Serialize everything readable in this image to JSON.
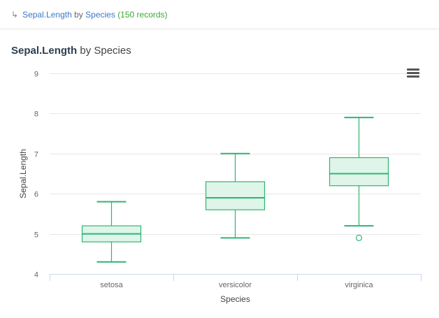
{
  "breadcrumb": {
    "arrow": "↳",
    "variable": "Sepal.Length",
    "by": " by ",
    "group": "Species",
    "count": "(150 records)"
  },
  "chart_title": {
    "variable": "Sepal.Length",
    "rest": " by Species"
  },
  "icons": {
    "menu": "hamburger-menu-icon"
  },
  "colors": {
    "stroke": "#2bb673",
    "fill": "#dff5e9"
  },
  "chart_data": {
    "type": "boxplot",
    "xlabel": "Species",
    "ylabel": "Sepal.Length",
    "ylim": [
      4,
      9
    ],
    "yticks": [
      4,
      5,
      6,
      7,
      8,
      9
    ],
    "grid": true,
    "categories": [
      "setosa",
      "versicolor",
      "virginica"
    ],
    "boxes": [
      {
        "category": "setosa",
        "min": 4.3,
        "q1": 4.8,
        "median": 5.0,
        "q3": 5.2,
        "max": 5.8,
        "outliers": []
      },
      {
        "category": "versicolor",
        "min": 4.9,
        "q1": 5.6,
        "median": 5.9,
        "q3": 6.3,
        "max": 7.0,
        "outliers": []
      },
      {
        "category": "virginica",
        "min": 5.2,
        "q1": 6.2,
        "median": 6.5,
        "q3": 6.9,
        "max": 7.9,
        "outliers": [
          4.9
        ]
      }
    ]
  }
}
